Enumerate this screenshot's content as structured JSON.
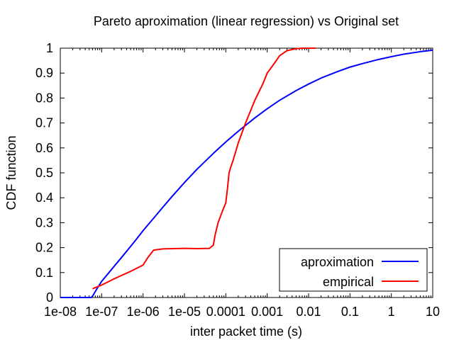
{
  "chart_data": {
    "type": "line",
    "title": "Pareto aproximation (linear regression) vs Original set",
    "xlabel": "inter packet time (s)",
    "ylabel": "CDF function",
    "xscale": "log",
    "xlim": [
      1e-08,
      10
    ],
    "ylim": [
      0,
      1
    ],
    "grid": false,
    "legend_position": "bottom-right",
    "x_ticks": [
      1e-08,
      1e-07,
      1e-06,
      1e-05,
      0.0001,
      0.001,
      0.01,
      0.1,
      1,
      10
    ],
    "x_tick_labels": [
      "1e-08",
      "1e-07",
      "1e-06",
      "1e-05",
      "0.0001",
      "0.001",
      "0.01",
      "0.1",
      "1",
      "10"
    ],
    "y_ticks": [
      0,
      0.1,
      0.2,
      0.3,
      0.4,
      0.5,
      0.6,
      0.7,
      0.8,
      0.9,
      1
    ],
    "y_tick_labels": [
      "0",
      "0.1",
      "0.2",
      "0.3",
      "0.4",
      "0.5",
      "0.6",
      "0.7",
      "0.8",
      "0.9",
      "1"
    ],
    "series": [
      {
        "name": "aproximation",
        "color": "#0000ff",
        "x": [
          1e-08,
          5.6e-08,
          6e-08,
          8e-08,
          1e-07,
          1.5e-07,
          2e-07,
          3e-07,
          5e-07,
          7e-07,
          1e-06,
          2e-06,
          3e-06,
          5e-06,
          1e-05,
          2e-05,
          5e-05,
          0.0001,
          0.0002,
          0.0005,
          0.001,
          0.002,
          0.005,
          0.01,
          0.02,
          0.05,
          0.1,
          0.2,
          0.5,
          1,
          2,
          5,
          10
        ],
        "y": [
          0,
          0,
          0.005,
          0.04,
          0.065,
          0.1,
          0.125,
          0.16,
          0.205,
          0.235,
          0.268,
          0.327,
          0.362,
          0.405,
          0.461,
          0.514,
          0.578,
          0.624,
          0.667,
          0.72,
          0.757,
          0.791,
          0.83,
          0.856,
          0.88,
          0.906,
          0.924,
          0.938,
          0.955,
          0.966,
          0.976,
          0.986,
          0.992
        ]
      },
      {
        "name": "empirical",
        "color": "#ff0000",
        "x": [
          6e-08,
          1e-07,
          2e-07,
          5e-07,
          1e-06,
          1.3e-06,
          1.8e-06,
          3e-06,
          1e-05,
          2e-05,
          4e-05,
          5e-05,
          5.5e-05,
          6.5e-05,
          8e-05,
          0.0001,
          0.00011,
          0.00012,
          0.00013,
          0.00015,
          0.0002,
          0.0003,
          0.0005,
          0.0008,
          0.001,
          0.0015,
          0.002,
          0.003,
          0.005,
          0.007,
          0.01,
          0.015
        ],
        "y": [
          0.035,
          0.05,
          0.075,
          0.105,
          0.13,
          0.16,
          0.19,
          0.195,
          0.197,
          0.196,
          0.197,
          0.21,
          0.25,
          0.3,
          0.34,
          0.38,
          0.44,
          0.5,
          0.52,
          0.55,
          0.62,
          0.7,
          0.79,
          0.86,
          0.9,
          0.94,
          0.97,
          0.99,
          0.998,
          1.0,
          1.0,
          1.0
        ]
      }
    ]
  }
}
